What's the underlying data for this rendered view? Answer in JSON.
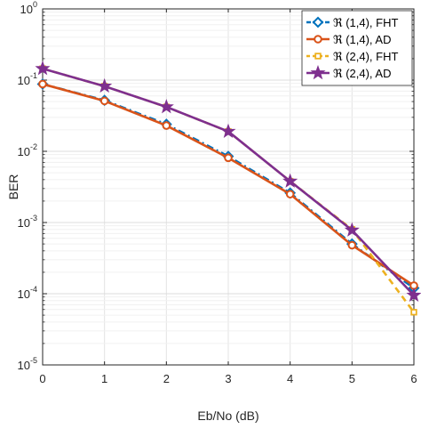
{
  "chart_data": {
    "type": "line",
    "xlabel": "Eb/No (dB)",
    "ylabel": "BER",
    "x": [
      0,
      1,
      2,
      3,
      4,
      5,
      6
    ],
    "xlim": [
      0,
      6
    ],
    "ylim": [
      1e-05,
      1
    ],
    "yscale": "log",
    "grid": true,
    "legend_position": "top-right",
    "x_ticks": [
      "0",
      "1",
      "2",
      "3",
      "4",
      "5",
      "6"
    ],
    "y_ticks": [
      {
        "base": "10",
        "exp": "0"
      },
      {
        "base": "10",
        "exp": "-1"
      },
      {
        "base": "10",
        "exp": "-2"
      },
      {
        "base": "10",
        "exp": "-3"
      },
      {
        "base": "10",
        "exp": "-4"
      },
      {
        "base": "10",
        "exp": "-5"
      }
    ],
    "series": [
      {
        "name": "ℜ (1,4), FHT",
        "color": "#0072BD",
        "marker": "diamond",
        "dash": "dashdot",
        "values": [
          0.088,
          0.052,
          0.024,
          0.0085,
          0.0026,
          0.0005,
          0.00012
        ]
      },
      {
        "name": "ℜ (1,4), AD",
        "color": "#D95319",
        "marker": "circle",
        "dash": "solid",
        "values": [
          0.088,
          0.051,
          0.023,
          0.0081,
          0.0025,
          0.00048,
          0.00013
        ]
      },
      {
        "name": "ℜ (2,4), FHT",
        "color": "#EDB120",
        "marker": "square",
        "dash": "dashed",
        "values": [
          0.145,
          0.082,
          0.042,
          0.019,
          0.0038,
          0.0008,
          5.5e-05
        ]
      },
      {
        "name": "ℜ (2,4), AD",
        "color": "#7E2F8E",
        "marker": "star",
        "dash": "solid",
        "values": [
          0.145,
          0.082,
          0.042,
          0.019,
          0.0038,
          0.00078,
          9.5e-05
        ]
      }
    ]
  }
}
